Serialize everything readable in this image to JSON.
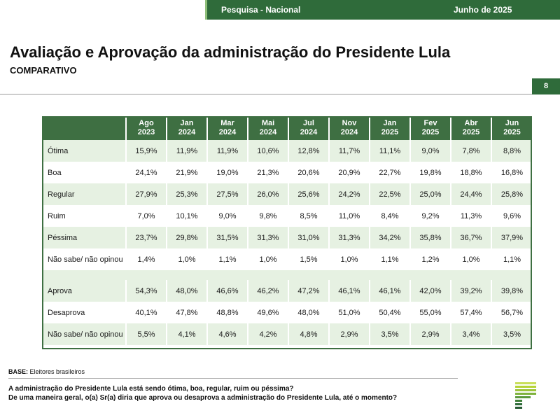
{
  "header": {
    "survey": "Pesquisa - Nacional",
    "date": "Junho de 2025",
    "title": "Avaliação e Aprovação da administração do Presidente Lula",
    "subtitle": "COMPARATIVO",
    "page_number": "8"
  },
  "table": {
    "columns": [
      {
        "month": "Ago",
        "year": "2023"
      },
      {
        "month": "Jan",
        "year": "2024"
      },
      {
        "month": "Mar",
        "year": "2024"
      },
      {
        "month": "Mai",
        "year": "2024"
      },
      {
        "month": "Jul",
        "year": "2024"
      },
      {
        "month": "Nov",
        "year": "2024"
      },
      {
        "month": "Jan",
        "year": "2025"
      },
      {
        "month": "Fev",
        "year": "2025"
      },
      {
        "month": "Abr",
        "year": "2025"
      },
      {
        "month": "Jun",
        "year": "2025"
      }
    ],
    "evaluation_rows": [
      {
        "label": "Ótima",
        "values": [
          "15,9%",
          "11,9%",
          "11,9%",
          "10,6%",
          "12,8%",
          "11,7%",
          "11,1%",
          "9,0%",
          "7,8%",
          "8,8%"
        ]
      },
      {
        "label": "Boa",
        "values": [
          "24,1%",
          "21,9%",
          "19,0%",
          "21,3%",
          "20,6%",
          "20,9%",
          "22,7%",
          "19,8%",
          "18,8%",
          "16,8%"
        ]
      },
      {
        "label": "Regular",
        "values": [
          "27,9%",
          "25,3%",
          "27,5%",
          "26,0%",
          "25,6%",
          "24,2%",
          "22,5%",
          "25,0%",
          "24,4%",
          "25,8%"
        ]
      },
      {
        "label": "Ruim",
        "values": [
          "7,0%",
          "10,1%",
          "9,0%",
          "9,8%",
          "8,5%",
          "11,0%",
          "8,4%",
          "9,2%",
          "11,3%",
          "9,6%"
        ]
      },
      {
        "label": "Péssima",
        "values": [
          "23,7%",
          "29,8%",
          "31,5%",
          "31,3%",
          "31,0%",
          "31,3%",
          "34,2%",
          "35,8%",
          "36,7%",
          "37,9%"
        ]
      },
      {
        "label": "Não sabe/ não opinou",
        "values": [
          "1,4%",
          "1,0%",
          "1,1%",
          "1,0%",
          "1,5%",
          "1,0%",
          "1,1%",
          "1,2%",
          "1,0%",
          "1,1%"
        ]
      }
    ],
    "approval_rows": [
      {
        "label": "Aprova",
        "values": [
          "54,3%",
          "48,0%",
          "46,6%",
          "46,2%",
          "47,2%",
          "46,1%",
          "46,1%",
          "42,0%",
          "39,2%",
          "39,8%"
        ]
      },
      {
        "label": "Desaprova",
        "values": [
          "40,1%",
          "47,8%",
          "48,8%",
          "49,6%",
          "48,0%",
          "51,0%",
          "50,4%",
          "55,0%",
          "57,4%",
          "56,7%"
        ]
      },
      {
        "label": "Não sabe/ não opinou",
        "values": [
          "5,5%",
          "4,1%",
          "4,6%",
          "4,2%",
          "4,8%",
          "2,9%",
          "3,5%",
          "2,9%",
          "3,4%",
          "3,5%"
        ]
      }
    ]
  },
  "footer": {
    "base_label": "BASE:",
    "base_text": " Eleitores brasileiros",
    "question1": "A administração do Presidente Lula está sendo ótima, boa, regular, ruim ou péssima?",
    "question2": "De uma maneira geral, o(a) Sr(a) diria que aprova ou desaprova a administração do Presidente Lula, até o momento?"
  },
  "colors": {
    "brand_green": "#2f6b3a",
    "header_green": "#3e6f42",
    "row_tint": "#e6f1e2",
    "logo_lime": "#b5d334"
  },
  "icons": [
    "company-logo-icon"
  ]
}
